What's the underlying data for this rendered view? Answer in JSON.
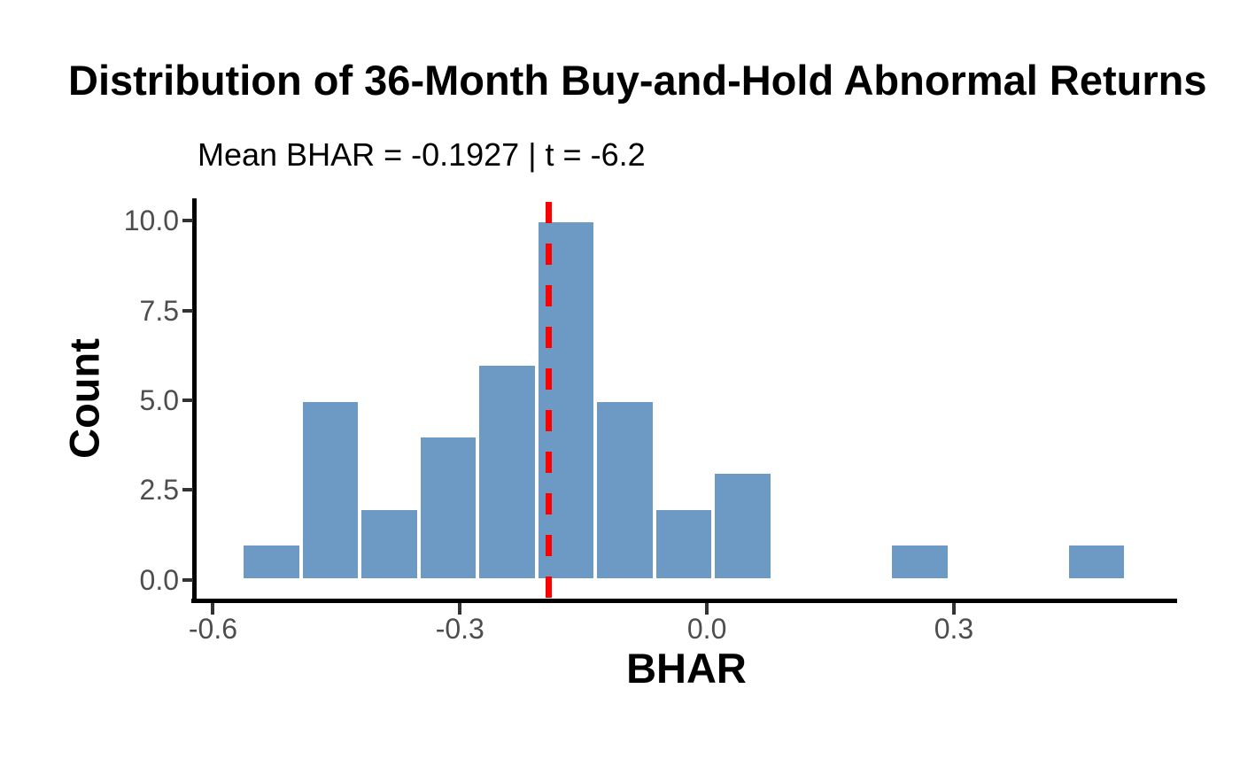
{
  "title": "Distribution of 36-Month Buy-and-Hold Abnormal Returns",
  "subtitle": "Mean BHAR = -0.1927 | t = -6.2",
  "colors": {
    "bar_fill": "#6C9AC4",
    "bar_border": "#FFFFFF",
    "mean_line": "#FF0000",
    "axis_line": "#000000",
    "tick_mark": "#333333",
    "tick_label": "#4D4D4D",
    "title_text": "#000000",
    "background": "#FFFFFF"
  },
  "stats": {
    "mean_bhar": -0.1927,
    "t_stat": -6.2,
    "n_obs": 40
  },
  "chart_data": {
    "type": "bar",
    "subtype": "histogram",
    "title": "Distribution of 36-Month Buy-and-Hold Abnormal Returns",
    "subtitle": "Mean BHAR = -0.1927 | t = -6.2",
    "xlabel": "BHAR",
    "ylabel": "Count",
    "bin_start": -0.565,
    "bin_width": 0.0716,
    "counts": [
      1,
      5,
      2,
      4,
      6,
      10,
      5,
      2,
      3,
      0,
      0,
      1,
      0,
      0,
      1
    ],
    "mean_vline_x": -0.1927,
    "x_ticks": [
      -0.6,
      -0.3,
      0.0,
      0.3
    ],
    "x_tick_labels": [
      "-0.6",
      "-0.3",
      "0.0",
      "0.3"
    ],
    "y_ticks": [
      0,
      2.5,
      5,
      7.5,
      10
    ],
    "y_tick_labels": [
      "0.0",
      "2.5",
      "5.0",
      "7.5",
      "10.0"
    ],
    "x_range": [
      -0.622,
      0.569
    ],
    "y_range": [
      -0.55,
      10.62
    ],
    "grid": false,
    "legend": false
  }
}
